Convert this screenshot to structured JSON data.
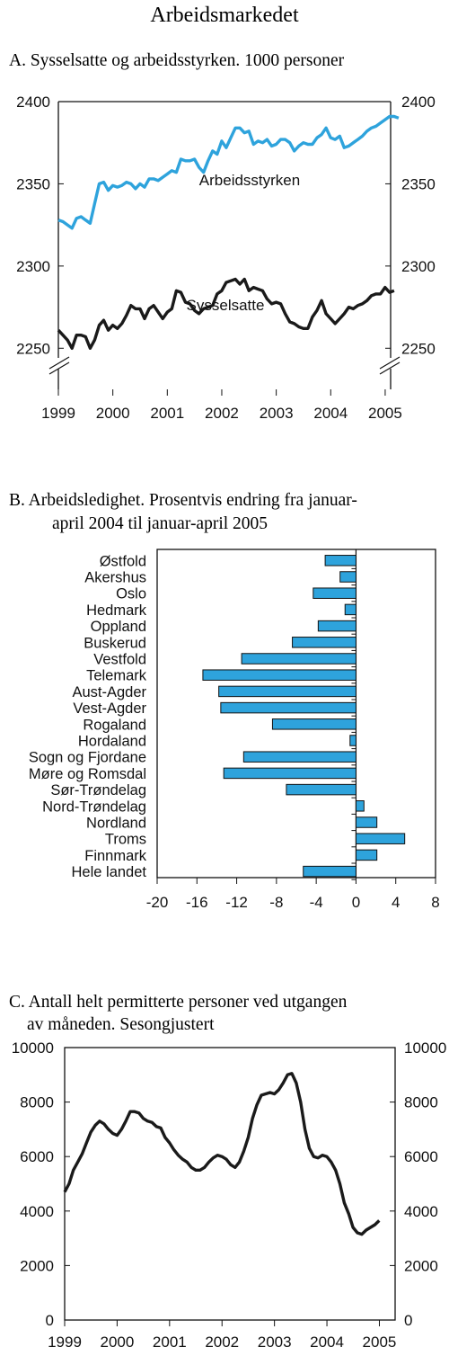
{
  "page": {
    "title": "Arbeidsmarkedet"
  },
  "chart_data": [
    {
      "id": "A",
      "type": "line",
      "title": "A.  Sysselsatte og arbeidsstyrken. 1000 personer",
      "x_tick_labels": [
        "1999",
        "2000",
        "2001",
        "2002",
        "2003",
        "2004",
        "2005"
      ],
      "x_ticks": [
        1999,
        2000,
        2001,
        2002,
        2003,
        2004,
        2005
      ],
      "xlim": [
        1999,
        2005.1
      ],
      "y_tick_labels": [
        "2250",
        "2300",
        "2350",
        "2400"
      ],
      "y_ticks": [
        2250,
        2300,
        2350,
        2400
      ],
      "ylim": [
        2225,
        2400
      ],
      "axis_break": true,
      "series": [
        {
          "name": "Arbeidsstyrken",
          "color": "#2ea3dc",
          "x_start": 1999.0,
          "x_step": 0.0833,
          "values": [
            2328,
            2327,
            2325,
            2323,
            2329,
            2330,
            2328,
            2326,
            2338,
            2350,
            2351,
            2346,
            2349,
            2348,
            2349,
            2351,
            2350,
            2347,
            2350,
            2348,
            2353,
            2353,
            2352,
            2354,
            2356,
            2358,
            2357,
            2365,
            2364,
            2364,
            2365,
            2360,
            2357,
            2364,
            2370,
            2368,
            2376,
            2372,
            2378,
            2384,
            2384,
            2381,
            2382,
            2374,
            2376,
            2375,
            2377,
            2373,
            2374,
            2377,
            2377,
            2375,
            2370,
            2373,
            2375,
            2374,
            2374,
            2378,
            2380,
            2384,
            2378,
            2377,
            2379,
            2372,
            2373,
            2375,
            2377,
            2379,
            2382,
            2384,
            2385,
            2387,
            2389,
            2391,
            2391,
            2390
          ]
        },
        {
          "name": "Sysselsatte",
          "color": "#1a1a1a",
          "x_start": 1999.0,
          "x_step": 0.0833,
          "values": [
            2261,
            2258,
            2255,
            2250,
            2258,
            2258,
            2257,
            2250,
            2255,
            2264,
            2267,
            2261,
            2264,
            2262,
            2265,
            2270,
            2276,
            2274,
            2274,
            2268,
            2274,
            2276,
            2272,
            2268,
            2272,
            2274,
            2285,
            2284,
            2278,
            2277,
            2273,
            2271,
            2274,
            2275,
            2276,
            2283,
            2285,
            2290,
            2291,
            2292,
            2289,
            2292,
            2285,
            2287,
            2286,
            2285,
            2280,
            2277,
            2278,
            2277,
            2271,
            2266,
            2265,
            2263,
            2262,
            2262,
            2269,
            2273,
            2279,
            2271,
            2268,
            2265,
            2268,
            2271,
            2275,
            2274,
            2276,
            2277,
            2279,
            2282,
            2283,
            2283,
            2287,
            2284,
            2285
          ]
        }
      ]
    },
    {
      "id": "B",
      "type": "bar",
      "orientation": "horizontal",
      "title_lines": [
        "B.   Arbeidsledighet. Prosentvis endring fra januar-",
        "april 2004 til januar-april 2005"
      ],
      "bar_color": "#2ea3dc",
      "categories": [
        "Østfold",
        "Akershus",
        "Oslo",
        "Hedmark",
        "Oppland",
        "Buskerud",
        "Vestfold",
        "Telemark",
        "Aust-Agder",
        "Vest-Agder",
        "Rogaland",
        "Hordaland",
        "Sogn og Fjordane",
        "Møre og Romsdal",
        "Sør-Trøndelag",
        "Nord-Trøndelag",
        "Nordland",
        "Troms",
        "Finnmark",
        "Hele landet"
      ],
      "values": [
        -3.1,
        -1.6,
        -4.3,
        -1.1,
        -3.8,
        -6.4,
        -11.5,
        -15.4,
        -13.8,
        -13.6,
        -8.4,
        -0.6,
        -11.3,
        -13.3,
        -7.0,
        0.8,
        2.1,
        4.9,
        2.1,
        -5.3
      ],
      "x_tick_labels": [
        "-20",
        "-16",
        "-12",
        "-8",
        "-4",
        "0",
        "4",
        "8"
      ],
      "x_ticks": [
        -20,
        -16,
        -12,
        -8,
        -4,
        0,
        4,
        8
      ],
      "xlim": [
        -20,
        8
      ]
    },
    {
      "id": "C",
      "type": "line",
      "title_lines": [
        "C. Antall helt permitterte personer ved utgangen",
        "av måneden. Sesongjustert"
      ],
      "x_tick_labels": [
        "1999",
        "2000",
        "2001",
        "2002",
        "2003",
        "2004",
        "2005"
      ],
      "x_ticks": [
        1999,
        2000,
        2001,
        2002,
        2003,
        2004,
        2005
      ],
      "xlim": [
        1999,
        2005.3
      ],
      "y_tick_labels": [
        "0",
        "2000",
        "4000",
        "6000",
        "8000",
        "10000"
      ],
      "y_ticks": [
        0,
        2000,
        4000,
        6000,
        8000,
        10000
      ],
      "ylim": [
        0,
        10000
      ],
      "series": [
        {
          "name": "",
          "color": "#1a1a1a",
          "x_start": 1999.0,
          "x_step": 0.0833,
          "values": [
            4700,
            5000,
            5500,
            5800,
            6100,
            6500,
            6900,
            7150,
            7300,
            7200,
            7000,
            6850,
            6780,
            7000,
            7300,
            7650,
            7650,
            7600,
            7400,
            7300,
            7250,
            7100,
            7050,
            6700,
            6500,
            6250,
            6050,
            5900,
            5800,
            5600,
            5500,
            5500,
            5600,
            5800,
            5950,
            6050,
            6000,
            5900,
            5700,
            5600,
            5800,
            6200,
            6700,
            7400,
            7900,
            8250,
            8300,
            8350,
            8300,
            8450,
            8700,
            9000,
            9050,
            8700,
            8000,
            7000,
            6300,
            6000,
            5950,
            6050,
            6000,
            5800,
            5500,
            5000,
            4300,
            3900,
            3400,
            3200,
            3150,
            3300,
            3400,
            3500,
            3650
          ]
        }
      ]
    }
  ]
}
